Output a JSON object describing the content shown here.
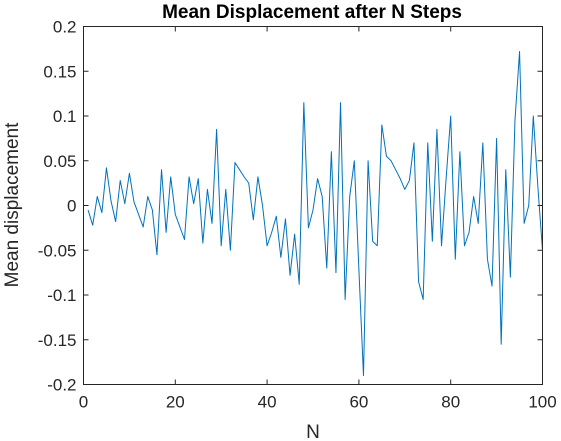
{
  "chart_data": {
    "type": "line",
    "title": "Mean Displacement after N Steps",
    "xlabel": "N",
    "ylabel": "Mean displacement",
    "xlim": [
      0,
      100
    ],
    "ylim": [
      -0.2,
      0.2
    ],
    "xticks": [
      0,
      20,
      40,
      60,
      80,
      100
    ],
    "xtick_labels": [
      "0",
      "20",
      "40",
      "60",
      "80",
      "100"
    ],
    "yticks": [
      0.2,
      0.15,
      0.1,
      0.05,
      0,
      -0.05,
      -0.1,
      -0.15,
      -0.2
    ],
    "ytick_labels": [
      "0.2",
      "0.15",
      "0.1",
      "0.05",
      "0",
      "-0.05",
      "-0.1",
      "-0.15",
      "-0.2"
    ],
    "grid": false,
    "line_color": "#0072BD",
    "series": [
      {
        "x": [
          1,
          2,
          3,
          4,
          5,
          6,
          7,
          8,
          9,
          10,
          11,
          12,
          13,
          14,
          15,
          16,
          17,
          18,
          19,
          20,
          21,
          22,
          23,
          24,
          25,
          26,
          27,
          28,
          29,
          30,
          31,
          32,
          33,
          34,
          35,
          36,
          37,
          38,
          39,
          40,
          41,
          42,
          43,
          44,
          45,
          46,
          47,
          48,
          49,
          50,
          51,
          52,
          53,
          54,
          55,
          56,
          57,
          58,
          59,
          60,
          61,
          62,
          63,
          64,
          65,
          66,
          67,
          68,
          69,
          70,
          71,
          72,
          73,
          74,
          75,
          76,
          77,
          78,
          79,
          80,
          81,
          82,
          83,
          84,
          85,
          86,
          87,
          88,
          89,
          90,
          91,
          92,
          93,
          94,
          95,
          96,
          97,
          98,
          99,
          100
        ],
        "y": [
          -0.005,
          -0.022,
          0.01,
          -0.008,
          0.042,
          0.005,
          -0.018,
          0.028,
          0.002,
          0.036,
          0.004,
          -0.01,
          -0.024,
          0.01,
          -0.005,
          -0.055,
          0.04,
          -0.03,
          0.032,
          -0.01,
          -0.024,
          -0.038,
          0.032,
          0.002,
          0.03,
          -0.042,
          0.018,
          -0.02,
          0.085,
          -0.045,
          0.018,
          -0.05,
          0.048,
          0.04,
          0.032,
          0.025,
          -0.016,
          0.032,
          0.0,
          -0.045,
          -0.03,
          -0.012,
          -0.058,
          -0.015,
          -0.078,
          -0.032,
          -0.088,
          0.115,
          -0.025,
          -0.005,
          0.03,
          0.01,
          -0.07,
          0.06,
          -0.075,
          0.115,
          -0.105,
          0.01,
          0.05,
          -0.072,
          -0.19,
          0.05,
          -0.04,
          -0.045,
          0.09,
          0.055,
          0.05,
          0.04,
          0.03,
          0.018,
          0.028,
          0.07,
          -0.085,
          -0.105,
          0.07,
          -0.04,
          0.085,
          -0.045,
          0.03,
          0.1,
          -0.06,
          0.06,
          -0.045,
          -0.03,
          0.01,
          -0.02,
          0.07,
          -0.06,
          -0.09,
          0.075,
          -0.155,
          0.04,
          -0.08,
          0.095,
          0.172,
          -0.02,
          0.0,
          0.1,
          0.02,
          -0.05
        ]
      }
    ]
  }
}
